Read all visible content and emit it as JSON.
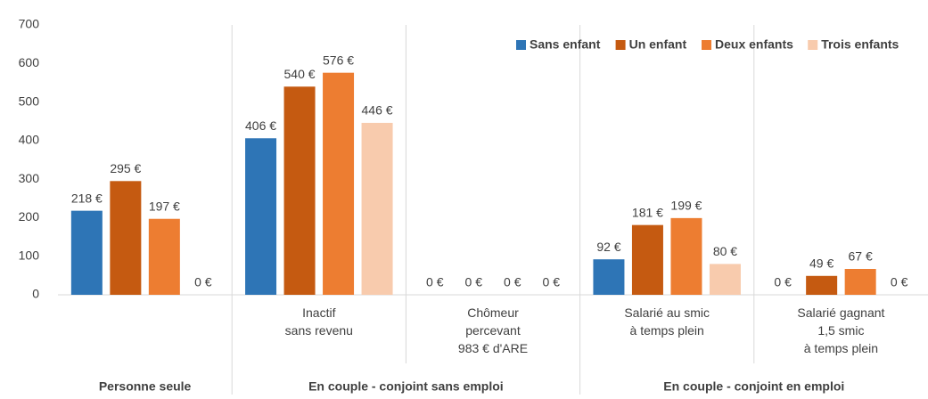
{
  "chart_data": {
    "type": "bar",
    "categories": [
      null,
      [
        "Inactif",
        "sans revenu"
      ],
      [
        "Chômeur",
        "percevant",
        "983 € d'ARE"
      ],
      [
        "Salarié au smic",
        "à temps plein"
      ],
      [
        "Salarié gagnant",
        "1,5 smic",
        "à temps plein"
      ]
    ],
    "groups": [
      {
        "name": "Personne seule",
        "count": 1
      },
      {
        "name": "En couple - conjoint sans emploi",
        "count": 2
      },
      {
        "name": "En couple - conjoint en emploi",
        "count": 2
      }
    ],
    "series": [
      {
        "name": "Sans enfant",
        "color": "#2e75b6",
        "values": [
          218,
          406,
          0,
          92,
          0
        ],
        "value_labels": [
          "218 €",
          "406 €",
          "0 €",
          "92 €",
          "0 €"
        ]
      },
      {
        "name": "Un enfant",
        "color": "#c55a11",
        "values": [
          295,
          540,
          0,
          181,
          49
        ],
        "value_labels": [
          "295 €",
          "540 €",
          "0 €",
          "181 €",
          "49 €"
        ]
      },
      {
        "name": "Deux enfants",
        "color": "#ed7d31",
        "values": [
          197,
          576,
          0,
          199,
          67
        ],
        "value_labels": [
          "197 €",
          "576 €",
          "0 €",
          "199 €",
          "67 €"
        ]
      },
      {
        "name": "Trois enfants",
        "color": "#f8cbad",
        "values": [
          0,
          446,
          0,
          80,
          0
        ],
        "value_labels": [
          "0 €",
          "446 €",
          "0 €",
          "80 €",
          "0 €"
        ]
      }
    ],
    "ylim": [
      0,
      700
    ],
    "yticks": [
      0,
      100,
      200,
      300,
      400,
      500,
      600,
      700
    ],
    "legend": "top-right"
  }
}
